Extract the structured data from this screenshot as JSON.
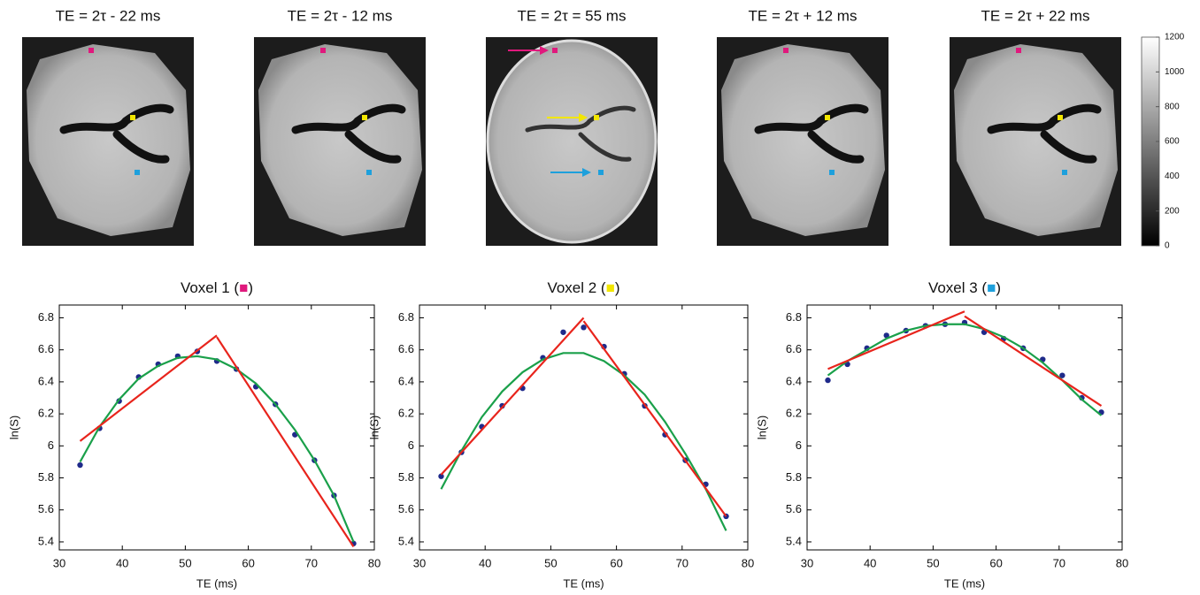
{
  "images": {
    "panels": [
      {
        "title": "TE = 2τ - 22 ms"
      },
      {
        "title": "TE = 2τ - 12 ms"
      },
      {
        "title": "TE = 2τ = 55 ms"
      },
      {
        "title": "TE = 2τ + 12 ms"
      },
      {
        "title": "TE = 2τ + 22 ms"
      }
    ],
    "colorbar": {
      "lim": [
        0,
        1200
      ],
      "ticks": [
        0,
        200,
        400,
        600,
        800,
        1000,
        1200
      ]
    }
  },
  "chart_data": [
    {
      "type": "scatter",
      "title": "Voxel 1 (■)",
      "marker_color": "#e0197d",
      "x_label": "TE (ms)",
      "y_label": "ln(S)",
      "xlim": [
        30,
        80
      ],
      "xticks": [
        30,
        40,
        50,
        60,
        70,
        80
      ],
      "ylim": [
        5.35,
        6.88
      ],
      "yticks": [
        5.4,
        5.6,
        5.8,
        6,
        6.2,
        6.4,
        6.6,
        6.8
      ],
      "series": [
        {
          "style": "markers",
          "color": "#1f2a8a",
          "x": [
            33.3,
            36.4,
            39.5,
            42.6,
            45.7,
            48.8,
            51.9,
            55,
            58.1,
            61.2,
            64.3,
            67.4,
            70.5,
            73.6,
            76.7
          ],
          "values": [
            5.88,
            6.11,
            6.28,
            6.43,
            6.51,
            6.56,
            6.59,
            6.53,
            6.48,
            6.37,
            6.26,
            6.07,
            5.91,
            5.69,
            5.39
          ]
        },
        {
          "style": "line",
          "color": "#1aa04a",
          "x": [
            33.3,
            36.4,
            39.5,
            42.6,
            45.7,
            48.8,
            51.9,
            55,
            58.1,
            61.2,
            64.3,
            67.4,
            70.5,
            73.6,
            76.7
          ],
          "values": [
            5.9,
            6.12,
            6.29,
            6.42,
            6.5,
            6.55,
            6.56,
            6.54,
            6.48,
            6.39,
            6.26,
            6.1,
            5.91,
            5.69,
            5.4
          ]
        },
        {
          "style": "line",
          "color": "#e8241c",
          "x": [
            33.3,
            55
          ],
          "values": [
            6.03,
            6.69
          ]
        },
        {
          "style": "line",
          "color": "#e8241c",
          "x": [
            55,
            76.7
          ],
          "values": [
            6.68,
            5.37
          ]
        }
      ]
    },
    {
      "type": "scatter",
      "title": "Voxel 2 (■)",
      "marker_color": "#f2e600",
      "x_label": "TE (ms)",
      "y_label": "ln(S)",
      "xlim": [
        30,
        80
      ],
      "xticks": [
        30,
        40,
        50,
        60,
        70,
        80
      ],
      "ylim": [
        5.35,
        6.88
      ],
      "yticks": [
        5.4,
        5.6,
        5.8,
        6,
        6.2,
        6.4,
        6.6,
        6.8
      ],
      "series": [
        {
          "style": "markers",
          "color": "#1f2a8a",
          "x": [
            33.3,
            36.4,
            39.5,
            42.6,
            45.7,
            48.8,
            51.9,
            55,
            58.1,
            61.2,
            64.3,
            67.4,
            70.5,
            73.6,
            76.7
          ],
          "values": [
            5.81,
            5.96,
            6.12,
            6.25,
            6.36,
            6.55,
            6.71,
            6.74,
            6.62,
            6.45,
            6.25,
            6.07,
            5.91,
            5.76,
            5.56
          ]
        },
        {
          "style": "line",
          "color": "#1aa04a",
          "x": [
            33.3,
            36.4,
            39.5,
            42.6,
            45.7,
            48.8,
            51.9,
            55,
            58.1,
            61.2,
            64.3,
            67.4,
            70.5,
            73.6,
            76.7
          ],
          "values": [
            5.73,
            5.97,
            6.18,
            6.34,
            6.46,
            6.54,
            6.58,
            6.58,
            6.53,
            6.44,
            6.32,
            6.15,
            5.95,
            5.73,
            5.47
          ]
        },
        {
          "style": "line",
          "color": "#e8241c",
          "x": [
            33.3,
            55
          ],
          "values": [
            5.82,
            6.8
          ]
        },
        {
          "style": "line",
          "color": "#e8241c",
          "x": [
            55,
            76.7
          ],
          "values": [
            6.78,
            5.56
          ]
        }
      ]
    },
    {
      "type": "scatter",
      "title": "Voxel 3 (■)",
      "marker_color": "#1ea0dc",
      "x_label": "TE (ms)",
      "y_label": "ln(S)",
      "xlim": [
        30,
        80
      ],
      "xticks": [
        30,
        40,
        50,
        60,
        70,
        80
      ],
      "ylim": [
        5.35,
        6.88
      ],
      "yticks": [
        5.4,
        5.6,
        5.8,
        6,
        6.2,
        6.4,
        6.6,
        6.8
      ],
      "series": [
        {
          "style": "markers",
          "color": "#1f2a8a",
          "x": [
            33.3,
            36.4,
            39.5,
            42.6,
            45.7,
            48.8,
            51.9,
            55,
            58.1,
            61.2,
            64.3,
            67.4,
            70.5,
            73.6,
            76.7
          ],
          "values": [
            6.41,
            6.51,
            6.61,
            6.69,
            6.72,
            6.75,
            6.76,
            6.77,
            6.71,
            6.67,
            6.61,
            6.54,
            6.44,
            6.3,
            6.21
          ]
        },
        {
          "style": "line",
          "color": "#1aa04a",
          "x": [
            33.3,
            36.4,
            39.5,
            42.6,
            45.7,
            48.8,
            51.9,
            55,
            58.1,
            61.2,
            64.3,
            67.4,
            70.5,
            73.6,
            76.7
          ],
          "values": [
            6.44,
            6.53,
            6.6,
            6.67,
            6.72,
            6.75,
            6.76,
            6.76,
            6.73,
            6.68,
            6.61,
            6.52,
            6.41,
            6.29,
            6.19
          ]
        },
        {
          "style": "line",
          "color": "#e8241c",
          "x": [
            33.3,
            55
          ],
          "values": [
            6.48,
            6.84
          ]
        },
        {
          "style": "line",
          "color": "#e8241c",
          "x": [
            55,
            76.7
          ],
          "values": [
            6.81,
            6.25
          ]
        }
      ]
    }
  ]
}
